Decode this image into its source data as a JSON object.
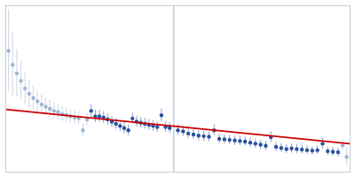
{
  "chart_data": {
    "type": "scatter",
    "xlim": [
      0.0,
      1.0
    ],
    "ylim": [
      0.05,
      1.6
    ],
    "tick_labels": false,
    "grid": false,
    "series": [
      {
        "type": "scatter",
        "color": "#9fb5d0",
        "x": [
          0.008,
          0.02,
          0.032,
          0.044,
          0.056,
          0.068,
          0.08,
          0.092,
          0.104,
          0.116,
          0.128,
          0.14,
          0.152,
          0.164,
          0.176,
          0.188,
          0.2,
          0.212,
          0.224,
          0.236,
          0.978,
          0.99
        ],
        "values": [
          1.18,
          1.05,
          0.97,
          0.9,
          0.83,
          0.78,
          0.74,
          0.71,
          0.68,
          0.66,
          0.64,
          0.62,
          0.61,
          0.59,
          0.58,
          0.57,
          0.56,
          0.55,
          0.44,
          0.54,
          0.3,
          0.19
        ],
        "errors": [
          0.38,
          0.3,
          0.22,
          0.18,
          0.15,
          0.13,
          0.11,
          0.1,
          0.09,
          0.085,
          0.08,
          0.075,
          0.072,
          0.07,
          0.068,
          0.066,
          0.065,
          0.063,
          0.062,
          0.06,
          0.055,
          0.09
        ]
      },
      {
        "type": "scatter",
        "color": "#2a52a0",
        "x": [
          0.248,
          0.26,
          0.272,
          0.284,
          0.296,
          0.308,
          0.32,
          0.332,
          0.344,
          0.356,
          0.368,
          0.38,
          0.392,
          0.404,
          0.416,
          0.428,
          0.44,
          0.452,
          0.464,
          0.476,
          0.5,
          0.515,
          0.53,
          0.545,
          0.56,
          0.575,
          0.59,
          0.605,
          0.62,
          0.635,
          0.65,
          0.665,
          0.68,
          0.695,
          0.71,
          0.725,
          0.74,
          0.755,
          0.77,
          0.785,
          0.8,
          0.815,
          0.83,
          0.845,
          0.86,
          0.875,
          0.89,
          0.905,
          0.92,
          0.935,
          0.95,
          0.965
        ],
        "values": [
          0.62,
          0.57,
          0.57,
          0.56,
          0.54,
          0.52,
          0.5,
          0.48,
          0.46,
          0.44,
          0.55,
          0.52,
          0.51,
          0.5,
          0.49,
          0.48,
          0.47,
          0.58,
          0.47,
          0.46,
          0.44,
          0.43,
          0.41,
          0.4,
          0.39,
          0.385,
          0.38,
          0.44,
          0.36,
          0.355,
          0.35,
          0.345,
          0.34,
          0.335,
          0.325,
          0.315,
          0.305,
          0.295,
          0.375,
          0.285,
          0.275,
          0.265,
          0.27,
          0.265,
          0.26,
          0.255,
          0.25,
          0.255,
          0.315,
          0.245,
          0.24,
          0.235
        ],
        "errors": [
          0.06,
          0.058,
          0.056,
          0.054,
          0.052,
          0.05,
          0.05,
          0.05,
          0.052,
          0.05,
          0.05,
          0.05,
          0.05,
          0.05,
          0.05,
          0.05,
          0.05,
          0.058,
          0.048,
          0.048,
          0.048,
          0.048,
          0.048,
          0.047,
          0.047,
          0.047,
          0.046,
          0.05,
          0.044,
          0.044,
          0.044,
          0.044,
          0.043,
          0.043,
          0.043,
          0.043,
          0.043,
          0.042,
          0.05,
          0.042,
          0.042,
          0.042,
          0.042,
          0.042,
          0.042,
          0.041,
          0.041,
          0.041,
          0.05,
          0.041,
          0.041,
          0.041
        ]
      },
      {
        "type": "line",
        "color": "#cc0000",
        "x": [
          0.0,
          1.0
        ],
        "values": [
          0.635,
          0.315
        ]
      }
    ],
    "vline": {
      "x": 0.488,
      "color": "#9ab8d8"
    }
  }
}
